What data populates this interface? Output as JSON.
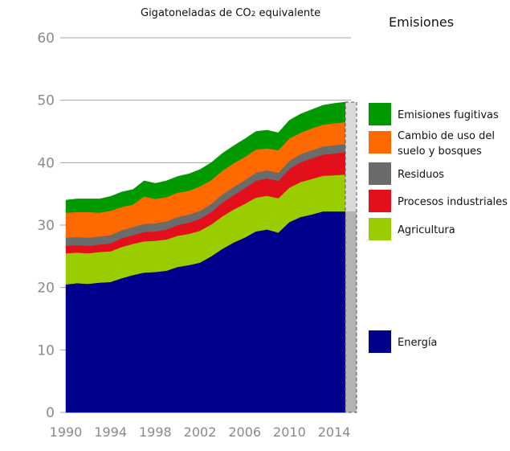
{
  "chart_data": {
    "type": "area",
    "title": "Gigatoneladas de CO",
    "title_sub": "2",
    "title_suffix": " equivalente",
    "legend_title": "Emisiones",
    "ylim": [
      0,
      60
    ],
    "xlim": [
      1990,
      2015
    ],
    "y_ticks": [
      0,
      10,
      20,
      30,
      40,
      50,
      60
    ],
    "x_ticks": [
      "1990",
      "1994",
      "1998",
      "2002",
      "2006",
      "2010",
      "2014"
    ],
    "stacked": true,
    "grid": true,
    "legend_position": "right",
    "x": [
      1990,
      1991,
      1992,
      1993,
      1994,
      1995,
      1996,
      1997,
      1998,
      1999,
      2000,
      2001,
      2002,
      2003,
      2004,
      2005,
      2006,
      2007,
      2008,
      2009,
      2010,
      2011,
      2012,
      2013,
      2014,
      2015
    ],
    "series": [
      {
        "name": "Energía",
        "color": "#00008c",
        "values": [
          20.5,
          20.7,
          20.6,
          20.8,
          20.9,
          21.5,
          22.0,
          22.4,
          22.5,
          22.7,
          23.3,
          23.6,
          24.0,
          25.0,
          26.2,
          27.2,
          28.0,
          29.0,
          29.3,
          28.8,
          30.5,
          31.3,
          31.7,
          32.2,
          32.2,
          32.2
        ]
      },
      {
        "name": "Agricultura",
        "color": "#9acd00",
        "values": [
          5.0,
          4.9,
          4.9,
          4.9,
          4.9,
          5.0,
          5.0,
          5.0,
          5.0,
          5.0,
          5.0,
          5.0,
          5.1,
          5.1,
          5.2,
          5.3,
          5.4,
          5.4,
          5.4,
          5.5,
          5.5,
          5.6,
          5.7,
          5.7,
          5.8,
          5.9
        ]
      },
      {
        "name": "Procesos industriales",
        "color": "#e3101c",
        "values": [
          1.2,
          1.2,
          1.2,
          1.2,
          1.3,
          1.4,
          1.4,
          1.5,
          1.5,
          1.6,
          1.7,
          1.8,
          1.9,
          2.0,
          2.2,
          2.3,
          2.5,
          2.7,
          2.8,
          2.8,
          3.0,
          3.2,
          3.3,
          3.4,
          3.5,
          3.6
        ]
      },
      {
        "name": "Residuos",
        "color": "#6b6b6b",
        "values": [
          1.3,
          1.3,
          1.3,
          1.3,
          1.3,
          1.3,
          1.3,
          1.3,
          1.3,
          1.3,
          1.3,
          1.3,
          1.3,
          1.3,
          1.3,
          1.3,
          1.3,
          1.3,
          1.3,
          1.3,
          1.3,
          1.3,
          1.3,
          1.3,
          1.3,
          1.3
        ]
      },
      {
        "name": "Cambio de uso del suelo y bosques",
        "color": "#ff6a00",
        "values": [
          4.0,
          4.0,
          4.1,
          3.8,
          3.9,
          3.7,
          3.6,
          4.4,
          3.9,
          3.9,
          3.9,
          3.8,
          3.9,
          3.8,
          3.8,
          3.8,
          3.7,
          3.7,
          3.5,
          3.6,
          3.6,
          3.4,
          3.5,
          3.5,
          3.5,
          3.5
        ]
      },
      {
        "name": "Emisiones fugitivas",
        "color": "#009900",
        "values": [
          2.0,
          2.1,
          2.1,
          2.2,
          2.3,
          2.4,
          2.4,
          2.5,
          2.5,
          2.6,
          2.6,
          2.7,
          2.7,
          2.8,
          2.8,
          2.8,
          2.9,
          2.9,
          2.9,
          2.8,
          2.9,
          3.0,
          3.0,
          3.1,
          3.2,
          3.2
        ]
      }
    ],
    "legend": [
      {
        "label_lines": [
          "Emisiones fugitivas"
        ],
        "color": "#009900"
      },
      {
        "label_lines": [
          "Cambio de uso del",
          "suelo y bosques"
        ],
        "color": "#ff6a00"
      },
      {
        "label_lines": [
          "Residuos"
        ],
        "color": "#6b6b6b"
      },
      {
        "label_lines": [
          "Procesos industriales"
        ],
        "color": "#e3101c"
      },
      {
        "label_lines": [
          "Agricultura"
        ],
        "color": "#9acd00"
      },
      {
        "label_lines": [
          "Energía"
        ],
        "color": "#00008c"
      }
    ],
    "colors": {
      "axis_label": "#8a8a8a",
      "grid": "#a0a0a0",
      "bracket_light": "#d9d9d9",
      "bracket_dark": "#b3b3b3",
      "bracket_border": "#555555"
    }
  }
}
